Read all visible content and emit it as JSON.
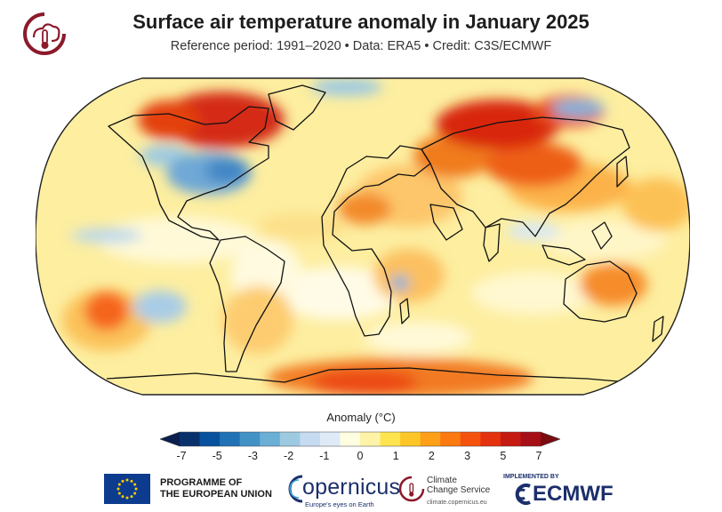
{
  "header": {
    "title": "Surface air temperature anomaly in January 2025",
    "subtitle": "Reference period: 1991–2020 • Data: ERA5 • Credit: C3S/ECMWF",
    "logo_icon": "c3s-thermometer-logo-icon"
  },
  "colorbar": {
    "title": "Anomaly (°C)",
    "tick_labels": [
      "-7",
      "-5",
      "-3",
      "-2",
      "-1",
      "0",
      "1",
      "2",
      "3",
      "5",
      "7"
    ],
    "colors": [
      "#08306b",
      "#08519c",
      "#2171b5",
      "#4292c6",
      "#6baed6",
      "#9ecae1",
      "#c6dbef",
      "#deebf7",
      "#fffde0",
      "#fff3a8",
      "#fee44f",
      "#fdc628",
      "#fd9f17",
      "#fc7a0f",
      "#f5530d",
      "#e4320f",
      "#c51a12",
      "#a50f15"
    ],
    "min_color": "#0a1f4d",
    "max_color": "#7a0c10"
  },
  "footer": {
    "eu_line1": "PROGRAMME OF",
    "eu_line2": "THE EUROPEAN UNION",
    "copernicus_word": "opernicus",
    "copernicus_tagline": "Europe's eyes on Earth",
    "c3s_line1": "Climate",
    "c3s_line2": "Change Service",
    "c3s_url": "climate.copernicus.eu",
    "ecmwf_implemented": "IMPLEMENTED BY",
    "ecmwf_word": "ECMWF"
  }
}
